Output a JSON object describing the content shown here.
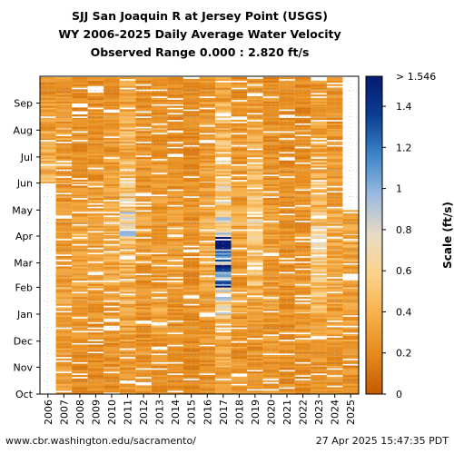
{
  "chart_data": {
    "type": "heatmap",
    "title": "SJJ San Joaquin R at Jersey Point (USGS)",
    "subtitle": "WY 2006-2025 Daily Average Water Velocity",
    "subtitle2": "Observed Range 0.000 : 2.820 ft/s",
    "x_categories": [
      "2006",
      "2007",
      "2008",
      "2009",
      "2010",
      "2011",
      "2012",
      "2013",
      "2014",
      "2015",
      "2016",
      "2017",
      "2018",
      "2019",
      "2020",
      "2021",
      "2022",
      "2023",
      "2024",
      "2025"
    ],
    "y_tick_labels": [
      "Oct",
      "Nov",
      "Dec",
      "Jan",
      "Feb",
      "Mar",
      "Apr",
      "May",
      "Jun",
      "Jul",
      "Aug",
      "Sep"
    ],
    "colorbar": {
      "label": "Scale (ft/s)",
      "ticks": [
        "0",
        "0.2",
        "0.4",
        "0.6",
        "0.8",
        "1",
        "1.2",
        "1.4"
      ],
      "tick_values": [
        0,
        0.2,
        0.4,
        0.6,
        0.8,
        1.0,
        1.2,
        1.4
      ],
      "max_label": "> 1.546",
      "min": 0,
      "max": 1.546,
      "colors": [
        "#c45a00",
        "#e58a1c",
        "#f7b04a",
        "#fcd28a",
        "#e9dcc3",
        "#9dbbe0",
        "#3d86c8",
        "#0b3f94",
        "#051a73"
      ]
    },
    "grid": true,
    "water_year_start": "Oct 1",
    "data_end": "2025-04-27",
    "coverage_starts": {
      "2006": "Jun"
    },
    "monthly_mean_ft_s": {
      "2006": {
        "Jun": 0.38,
        "Jul": 0.35,
        "Aug": 0.3,
        "Sep": 0.25
      },
      "2007": {
        "Oct": 0.3,
        "Nov": 0.28,
        "Dec": 0.27,
        "Jan": 0.28,
        "Feb": 0.27,
        "Mar": 0.26,
        "Apr": 0.25,
        "May": 0.25,
        "Jun": 0.28,
        "Jul": 0.3,
        "Aug": 0.28,
        "Sep": 0.25
      },
      "2008": {
        "Oct": 0.22,
        "Nov": 0.22,
        "Dec": 0.24,
        "Jan": 0.28,
        "Feb": 0.3,
        "Mar": 0.3,
        "Apr": 0.28,
        "May": 0.25,
        "Jun": 0.24,
        "Jul": 0.24,
        "Aug": 0.22,
        "Sep": 0.22
      },
      "2009": {
        "Oct": 0.22,
        "Nov": 0.22,
        "Dec": 0.24,
        "Jan": 0.26,
        "Feb": 0.28,
        "Mar": 0.3,
        "Apr": 0.3,
        "May": 0.28,
        "Jun": 0.25,
        "Jul": 0.24,
        "Aug": 0.22,
        "Sep": 0.22
      },
      "2010": {
        "Oct": 0.22,
        "Nov": 0.24,
        "Dec": 0.26,
        "Jan": 0.3,
        "Feb": 0.32,
        "Mar": 0.33,
        "Apr": 0.35,
        "May": 0.32,
        "Jun": 0.3,
        "Jul": 0.26,
        "Aug": 0.24,
        "Sep": 0.22
      },
      "2011": {
        "Oct": 0.26,
        "Nov": 0.28,
        "Dec": 0.32,
        "Jan": 0.38,
        "Feb": 0.4,
        "Mar": 0.5,
        "Apr": 0.7,
        "May": 0.55,
        "Jun": 0.48,
        "Jul": 0.4,
        "Aug": 0.35,
        "Sep": 0.3
      },
      "2012": {
        "Oct": 0.25,
        "Nov": 0.24,
        "Dec": 0.24,
        "Jan": 0.26,
        "Feb": 0.26,
        "Mar": 0.28,
        "Apr": 0.3,
        "May": 0.28,
        "Jun": 0.26,
        "Jul": 0.24,
        "Aug": 0.22,
        "Sep": 0.22
      },
      "2013": {
        "Oct": 0.22,
        "Nov": 0.24,
        "Dec": 0.3,
        "Jan": 0.32,
        "Feb": 0.28,
        "Mar": 0.27,
        "Apr": 0.27,
        "May": 0.26,
        "Jun": 0.25,
        "Jul": 0.24,
        "Aug": 0.22,
        "Sep": 0.22
      },
      "2014": {
        "Oct": 0.2,
        "Nov": 0.2,
        "Dec": 0.22,
        "Jan": 0.24,
        "Feb": 0.26,
        "Mar": 0.26,
        "Apr": 0.26,
        "May": 0.24,
        "Jun": 0.22,
        "Jul": 0.22,
        "Aug": 0.2,
        "Sep": 0.2
      },
      "2015": {
        "Oct": 0.2,
        "Nov": 0.2,
        "Dec": 0.22,
        "Jan": 0.24,
        "Feb": 0.24,
        "Mar": 0.24,
        "Apr": 0.24,
        "May": 0.22,
        "Jun": 0.22,
        "Jul": 0.2,
        "Aug": 0.2,
        "Sep": 0.2
      },
      "2016": {
        "Oct": 0.22,
        "Nov": 0.24,
        "Dec": 0.26,
        "Jan": 0.3,
        "Feb": 0.32,
        "Mar": 0.35,
        "Apr": 0.35,
        "May": 0.32,
        "Jun": 0.3,
        "Jul": 0.28,
        "Aug": 0.26,
        "Sep": 0.24
      },
      "2017": {
        "Oct": 0.3,
        "Nov": 0.35,
        "Dec": 0.45,
        "Jan": 0.7,
        "Feb": 1.2,
        "Mar": 1.5,
        "Apr": 0.8,
        "May": 0.6,
        "Jun": 0.5,
        "Jul": 0.42,
        "Aug": 0.38,
        "Sep": 0.32
      },
      "2018": {
        "Oct": 0.25,
        "Nov": 0.25,
        "Dec": 0.26,
        "Jan": 0.28,
        "Feb": 0.28,
        "Mar": 0.3,
        "Apr": 0.35,
        "May": 0.3,
        "Jun": 0.27,
        "Jul": 0.25,
        "Aug": 0.24,
        "Sep": 0.23
      },
      "2019": {
        "Oct": 0.24,
        "Nov": 0.25,
        "Dec": 0.3,
        "Jan": 0.35,
        "Feb": 0.45,
        "Mar": 0.5,
        "Apr": 0.55,
        "May": 0.5,
        "Jun": 0.4,
        "Jul": 0.34,
        "Aug": 0.3,
        "Sep": 0.27
      },
      "2020": {
        "Oct": 0.25,
        "Nov": 0.25,
        "Dec": 0.26,
        "Jan": 0.28,
        "Feb": 0.28,
        "Mar": 0.28,
        "Apr": 0.28,
        "May": 0.26,
        "Jun": 0.25,
        "Jul": 0.24,
        "Aug": 0.22,
        "Sep": 0.22
      },
      "2021": {
        "Oct": 0.22,
        "Nov": 0.22,
        "Dec": 0.22,
        "Jan": 0.24,
        "Feb": 0.24,
        "Mar": 0.24,
        "Apr": 0.24,
        "May": 0.22,
        "Jun": 0.22,
        "Jul": 0.2,
        "Aug": 0.2,
        "Sep": 0.2
      },
      "2022": {
        "Oct": 0.2,
        "Nov": 0.22,
        "Dec": 0.26,
        "Jan": 0.28,
        "Feb": 0.26,
        "Mar": 0.26,
        "Apr": 0.26,
        "May": 0.25,
        "Jun": 0.24,
        "Jul": 0.22,
        "Aug": 0.2,
        "Sep": 0.2
      },
      "2023": {
        "Oct": 0.22,
        "Nov": 0.24,
        "Dec": 0.3,
        "Jan": 0.45,
        "Feb": 0.5,
        "Mar": 0.55,
        "Apr": 0.55,
        "May": 0.45,
        "Jun": 0.4,
        "Jul": 0.35,
        "Aug": 0.3,
        "Sep": 0.27
      },
      "2024": {
        "Oct": 0.25,
        "Nov": 0.26,
        "Dec": 0.28,
        "Jan": 0.3,
        "Feb": 0.35,
        "Mar": 0.36,
        "Apr": 0.34,
        "May": 0.3,
        "Jun": 0.28,
        "Jul": 0.26,
        "Aug": 0.24,
        "Sep": 0.23
      },
      "2025": {
        "Oct": 0.23,
        "Nov": 0.24,
        "Dec": 0.28,
        "Jan": 0.3,
        "Feb": 0.32,
        "Mar": 0.34,
        "Apr": 0.33
      }
    }
  },
  "footer": {
    "source": "www.cbr.washington.edu/sacramento/",
    "timestamp": "27 Apr 2025 15:47:35 PDT"
  }
}
